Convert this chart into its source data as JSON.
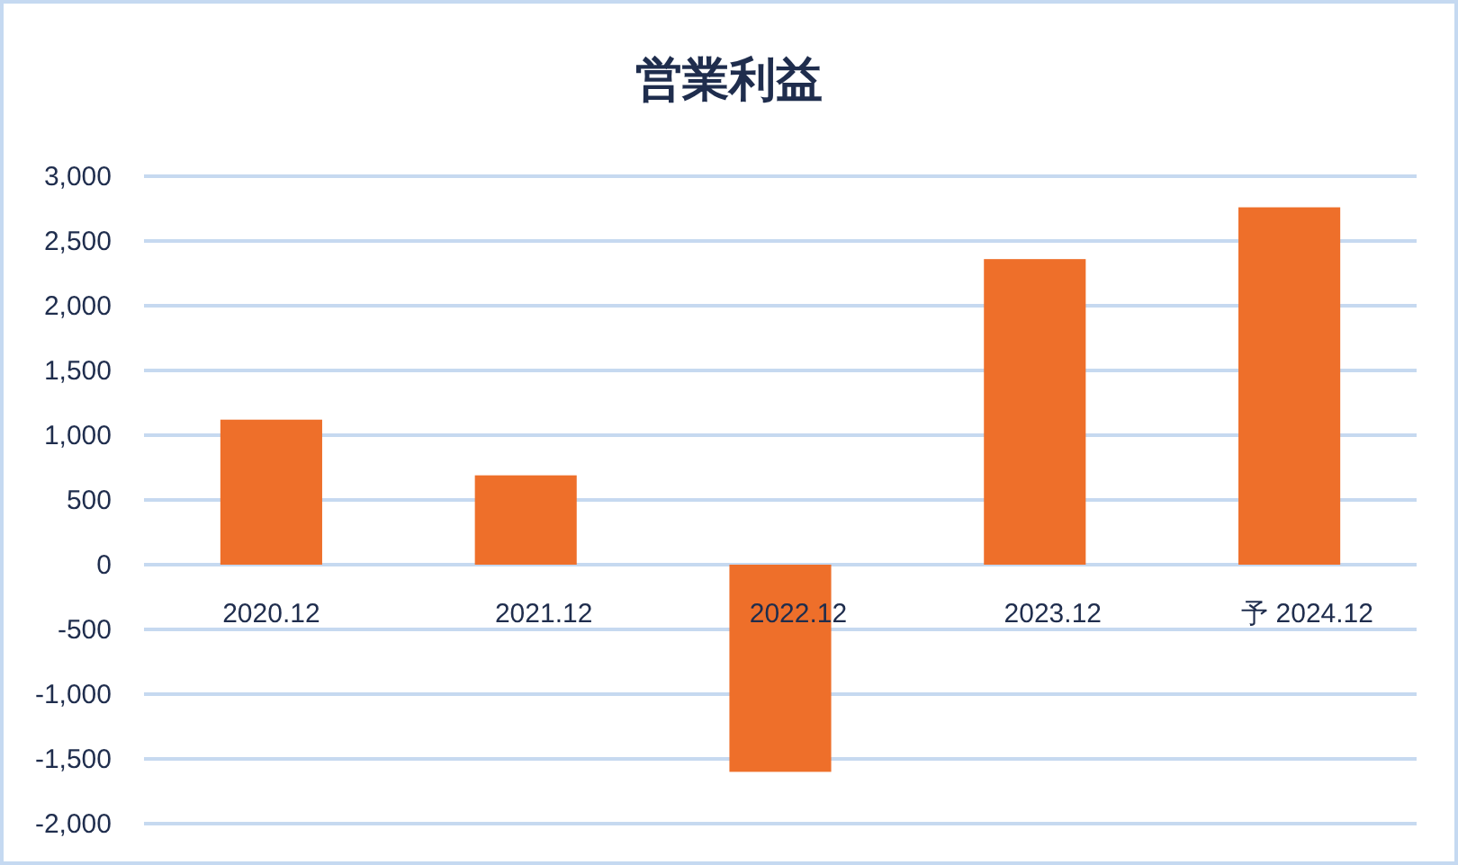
{
  "chart_data": {
    "type": "bar",
    "title": "営業利益",
    "categories": [
      "2020.12",
      "2021.12",
      "2022.12",
      "2023.12",
      "予 2024.12"
    ],
    "values": [
      1120,
      690,
      -1600,
      2360,
      2760
    ],
    "color": "#ee6f2a",
    "ylim": [
      -2000,
      3000
    ],
    "yticks": [
      {
        "value": -2000,
        "label": "-2,000"
      },
      {
        "value": -1500,
        "label": "-1,500"
      },
      {
        "value": -1000,
        "label": "-1,000"
      },
      {
        "value": -500,
        "label": "-500"
      },
      0,
      500,
      {
        "value": 1000,
        "label": "1,000"
      },
      {
        "value": 1500,
        "label": "1,500"
      },
      {
        "value": 2000,
        "label": "2,000"
      },
      {
        "value": 2500,
        "label": "2,500"
      },
      {
        "value": 3000,
        "label": "3,000"
      }
    ],
    "grid": "y"
  }
}
